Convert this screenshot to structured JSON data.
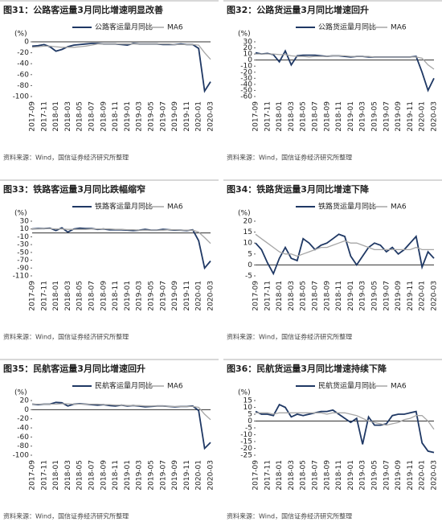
{
  "chart_data": [
    {
      "type": "line",
      "title": "图31：公路客运量3月同比增速明显改善",
      "unit": "(%)",
      "source": "资料来源：Wind，国信证券经济研究所整理",
      "categories": [
        "2017-09",
        null,
        "2017-11",
        null,
        "2018-01",
        null,
        "2018-03",
        null,
        "2018-05",
        null,
        "2018-07",
        null,
        "2018-09",
        null,
        "2018-11",
        null,
        "2019-01",
        null,
        "2019-03",
        null,
        "2019-05",
        null,
        "2019-07",
        null,
        "2019-09",
        null,
        "2019-11",
        null,
        "2020-01",
        null,
        "2020-03"
      ],
      "series": [
        {
          "name": "公路客运量月同比",
          "color": "#1f3864",
          "values": [
            -8,
            -7,
            -5,
            -9,
            -17,
            -14,
            -9,
            -6,
            -5,
            -4,
            -3,
            -3,
            -4,
            -4,
            -4,
            -5,
            -6,
            -3,
            -4,
            -4,
            -4,
            -4,
            -5,
            -5,
            -5,
            -4,
            -5,
            -5,
            -12,
            -90,
            -73
          ]
        },
        {
          "name": "MA6",
          "color": "#a6a6a6",
          "values": [
            -10,
            -9,
            -8,
            -8,
            -9,
            -10,
            -10,
            -10,
            -9,
            -8,
            -6,
            -4,
            -4,
            -4,
            -4,
            -4,
            -4,
            -4,
            -4,
            -4,
            -4,
            -4,
            -4,
            -4,
            -5,
            -5,
            -5,
            -5,
            -6,
            -20,
            -32
          ]
        }
      ],
      "ylim": [
        -100,
        0
      ],
      "yticks": [
        -100,
        -80,
        -60,
        -40,
        -20,
        0
      ]
    },
    {
      "type": "line",
      "title": "图32：公路货运量3月同比增速回升",
      "unit": "(%)",
      "source": "资料来源：Wind，国信证券经济研究所整理",
      "categories": [
        "2017-09",
        null,
        "2017-11",
        null,
        "2018-01",
        null,
        "2018-03",
        null,
        "2018-05",
        null,
        "2018-07",
        null,
        "2018-09",
        null,
        "2018-11",
        null,
        "2019-01",
        null,
        "2019-03",
        null,
        "2019-05",
        null,
        "2019-07",
        null,
        "2019-09",
        null,
        "2019-11",
        null,
        "2020-01",
        null,
        "2020-03"
      ],
      "series": [
        {
          "name": "公路货运量月同比",
          "color": "#1f3864",
          "values": [
            12,
            10,
            11,
            9,
            -3,
            15,
            -8,
            7,
            8,
            8,
            8,
            7,
            6,
            7,
            7,
            6,
            5,
            6,
            6,
            5,
            5,
            5,
            5,
            5,
            5,
            5,
            5,
            6,
            -20,
            -50,
            -30
          ]
        },
        {
          "name": "MA6",
          "color": "#a6a6a6",
          "values": [
            10,
            10,
            10,
            10,
            9,
            9,
            7,
            6,
            6,
            5,
            6,
            6,
            6,
            7,
            7,
            7,
            6,
            6,
            6,
            6,
            5,
            5,
            5,
            5,
            5,
            5,
            5,
            5,
            3,
            -8,
            -15
          ]
        }
      ],
      "ylim": [
        -60,
        30
      ],
      "yticks": [
        -60,
        -50,
        -40,
        -30,
        -20,
        -10,
        0,
        10,
        20,
        30
      ]
    },
    {
      "type": "line",
      "title": "图33：铁路客运量3月同比跌幅缩窄",
      "unit": "(%)",
      "source": "资料来源：Wind，国信证券经济研究所整理",
      "categories": [
        "2017-09",
        null,
        "2017-11",
        null,
        "2018-01",
        null,
        "2018-03",
        null,
        "2018-05",
        null,
        "2018-07",
        null,
        "2018-09",
        null,
        "2018-11",
        null,
        "2019-01",
        null,
        "2019-03",
        null,
        "2019-05",
        null,
        "2019-07",
        null,
        "2019-09",
        null,
        "2019-11",
        null,
        "2020-01",
        null,
        "2020-03"
      ],
      "series": [
        {
          "name": "铁路客运量月同比",
          "color": "#1f3864",
          "values": [
            10,
            11,
            11,
            12,
            6,
            13,
            2,
            10,
            12,
            11,
            11,
            9,
            10,
            8,
            8,
            8,
            7,
            6,
            7,
            9,
            7,
            7,
            9,
            8,
            7,
            7,
            6,
            8,
            -20,
            -90,
            -72
          ]
        },
        {
          "name": "MA6",
          "color": "#a6a6a6",
          "values": [
            10,
            10,
            11,
            11,
            10,
            10,
            9,
            9,
            9,
            9,
            10,
            10,
            10,
            10,
            9,
            9,
            8,
            8,
            7,
            7,
            7,
            7,
            7,
            8,
            8,
            7,
            7,
            7,
            2,
            -12,
            -27
          ]
        }
      ],
      "ylim": [
        -110,
        30
      ],
      "yticks": [
        -110,
        -90,
        -70,
        -50,
        -30,
        -10,
        10,
        30
      ]
    },
    {
      "type": "line",
      "title": "图34：铁路货运量3月同比增速下降",
      "unit": "(%)",
      "source": "资料来源：Wind，国信证券经济研究所整理",
      "categories": [
        "2017-09",
        null,
        "2017-11",
        null,
        "2018-01",
        null,
        "2018-03",
        null,
        "2018-05",
        null,
        "2018-07",
        null,
        "2018-09",
        null,
        "2018-11",
        null,
        "2019-01",
        null,
        "2019-03",
        null,
        "2019-05",
        null,
        "2019-07",
        null,
        "2019-09",
        null,
        "2019-11",
        null,
        "2020-01",
        null,
        "2020-03"
      ],
      "series": [
        {
          "name": "铁路货运量月同比",
          "color": "#1f3864",
          "values": [
            10,
            7,
            1,
            -4,
            3,
            8,
            3,
            2,
            12,
            10,
            7,
            9,
            10,
            12,
            14,
            13,
            4,
            0,
            4,
            8,
            10,
            9,
            6,
            8,
            5,
            7,
            10,
            13,
            -1,
            6,
            3
          ]
        },
        {
          "name": "MA6",
          "color": "#a6a6a6",
          "values": [
            14,
            12,
            10,
            8,
            6,
            5,
            5,
            4,
            5,
            6,
            7,
            8,
            8,
            9,
            10,
            11,
            10,
            10,
            9,
            8,
            7,
            7,
            7,
            7,
            7,
            7,
            7,
            8,
            7,
            7,
            7
          ]
        }
      ],
      "ylim": [
        -5,
        20
      ],
      "yticks": [
        -5,
        0,
        5,
        10,
        15,
        20
      ]
    },
    {
      "type": "line",
      "title": "图35：民航客运量3月同比增速回升",
      "unit": "(%)",
      "source": "资料来源：Wind，国信证券经济研究所整理",
      "categories": [
        "2017-09",
        null,
        "2017-11",
        null,
        "2018-01",
        null,
        "2018-03",
        null,
        "2018-05",
        null,
        "2018-07",
        null,
        "2018-09",
        null,
        "2018-11",
        null,
        "2019-01",
        null,
        "2019-03",
        null,
        "2019-05",
        null,
        "2019-07",
        null,
        "2019-09",
        null,
        "2019-11",
        null,
        "2020-01",
        null,
        "2020-03"
      ],
      "series": [
        {
          "name": "民航客运量月同比",
          "color": "#1f3864",
          "values": [
            12,
            11,
            12,
            12,
            16,
            15,
            8,
            12,
            13,
            12,
            11,
            10,
            11,
            9,
            8,
            10,
            8,
            9,
            8,
            6,
            7,
            8,
            8,
            7,
            6,
            7,
            7,
            8,
            -2,
            -85,
            -72
          ]
        },
        {
          "name": "MA6",
          "color": "#a6a6a6",
          "values": [
            12,
            12,
            12,
            12,
            12,
            13,
            13,
            12,
            12,
            12,
            12,
            12,
            11,
            11,
            10,
            10,
            9,
            9,
            9,
            8,
            8,
            8,
            8,
            7,
            7,
            7,
            7,
            7,
            5,
            -10,
            -22
          ]
        }
      ],
      "ylim": [
        -100,
        20
      ],
      "yticks": [
        -100,
        -80,
        -60,
        -40,
        -20,
        0,
        20
      ]
    },
    {
      "type": "line",
      "title": "图36：民航货运量3月同比增速持续下降",
      "unit": "(%)",
      "source": "资料来源：Wind，国信证券经济研究所整理",
      "categories": [
        "2017-09",
        null,
        "2017-11",
        null,
        "2018-01",
        null,
        "2018-03",
        null,
        "2018-05",
        null,
        "2018-07",
        null,
        "2018-09",
        null,
        "2018-11",
        null,
        "2019-01",
        null,
        "2019-03",
        null,
        "2019-05",
        null,
        "2019-07",
        null,
        "2019-09",
        null,
        "2019-11",
        null,
        "2020-01",
        null,
        "2020-03"
      ],
      "series": [
        {
          "name": "民航货运量月同比",
          "color": "#1f3864",
          "values": [
            7,
            5,
            5,
            4,
            12,
            10,
            3,
            5,
            4,
            5,
            6,
            7,
            7,
            8,
            5,
            2,
            -1,
            2,
            -17,
            3,
            -3,
            -3,
            -2,
            4,
            5,
            5,
            6,
            7,
            -16,
            -22,
            -23
          ]
        },
        {
          "name": "MA6",
          "color": "#a6a6a6",
          "values": [
            6,
            6,
            6,
            5,
            6,
            6,
            6,
            6,
            6,
            6,
            6,
            6,
            5,
            6,
            6,
            6,
            5,
            4,
            2,
            0,
            -1,
            -2,
            -3,
            -2,
            -1,
            1,
            2,
            4,
            4,
            0,
            -6
          ]
        }
      ],
      "ylim": [
        -25,
        15
      ],
      "yticks": [
        -25,
        -20,
        -15,
        -10,
        -5,
        0,
        5,
        10,
        15
      ]
    }
  ]
}
